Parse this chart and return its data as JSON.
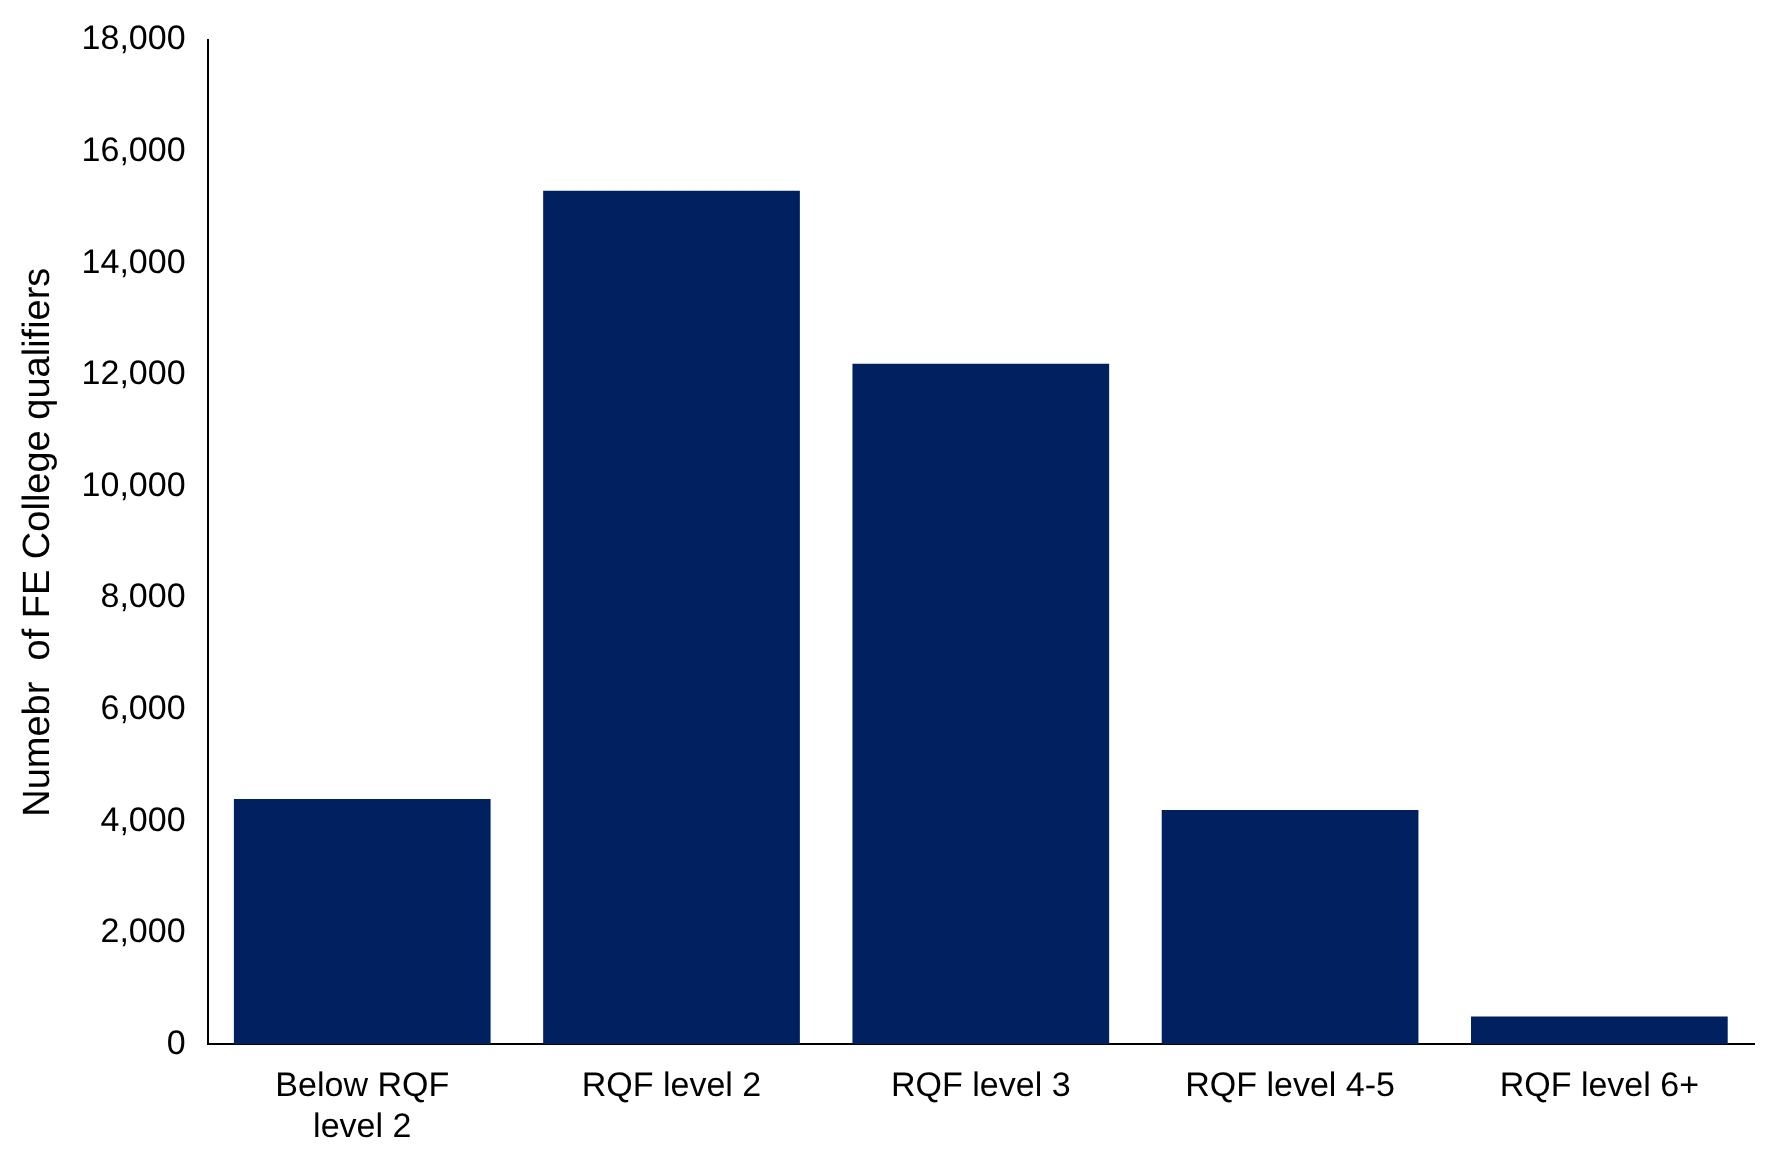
{
  "chart_data": {
    "type": "bar",
    "ylabel": "Numebr  of FE College qualifiers",
    "categories": [
      "Below RQF level 2",
      "RQF level 2",
      "RQF level 3",
      "RQF level 4-5",
      "RQF level 6+"
    ],
    "values": [
      4400,
      15300,
      12200,
      4200,
      500
    ],
    "color": "#002060",
    "ylim": [
      0,
      18000
    ],
    "yticks": [
      {
        "value": 0,
        "label": "0"
      },
      {
        "value": 2000,
        "label": "2,000"
      },
      {
        "value": 4000,
        "label": "4,000"
      },
      {
        "value": 6000,
        "label": "6,000"
      },
      {
        "value": 8000,
        "label": "8,000"
      },
      {
        "value": 10000,
        "label": "10,000"
      },
      {
        "value": 12000,
        "label": "12,000"
      },
      {
        "value": 14000,
        "label": "14,000"
      },
      {
        "value": 16000,
        "label": "16,000"
      },
      {
        "value": 18000,
        "label": "18,000"
      }
    ],
    "grid": false,
    "legend": false
  }
}
